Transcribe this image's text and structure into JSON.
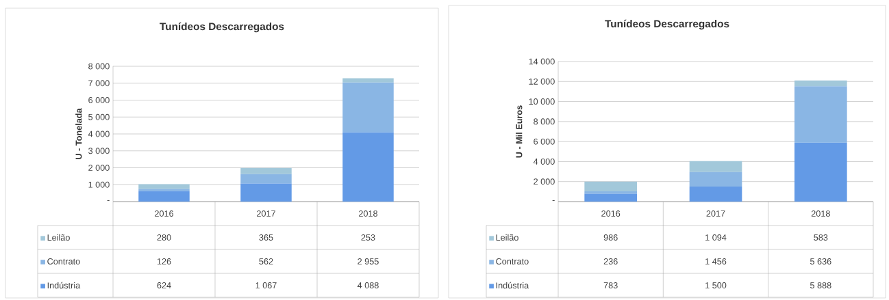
{
  "chart_data": [
    {
      "type": "bar",
      "stacked": true,
      "title": "Tunídeos Descarregados",
      "ylabel": "U - Tonelada",
      "categories": [
        "2016",
        "2017",
        "2018"
      ],
      "ylim": [
        0,
        8000
      ],
      "yticks": [
        {
          "value": 0,
          "label": "-"
        },
        {
          "value": 1000,
          "label": "1 000"
        },
        {
          "value": 2000,
          "label": "2 000"
        },
        {
          "value": 3000,
          "label": "3 000"
        },
        {
          "value": 4000,
          "label": "4 000"
        },
        {
          "value": 5000,
          "label": "5 000"
        },
        {
          "value": 6000,
          "label": "6 000"
        },
        {
          "value": 7000,
          "label": "7 000"
        },
        {
          "value": 8000,
          "label": "8 000"
        }
      ],
      "grid": "y",
      "legend": "bottom",
      "series": [
        {
          "name": "Indústria",
          "color": "#639ae6",
          "values": [
            624,
            1067,
            4088
          ],
          "value_labels": [
            "624",
            "1 067",
            "4 088"
          ]
        },
        {
          "name": "Contrato",
          "color": "#8ab6e4",
          "values": [
            126,
            562,
            2955
          ],
          "value_labels": [
            "126",
            "562",
            "2 955"
          ]
        },
        {
          "name": "Leilão",
          "color": "#a2c8da",
          "values": [
            280,
            365,
            253
          ],
          "value_labels": [
            "280",
            "365",
            "253"
          ]
        }
      ]
    },
    {
      "type": "bar",
      "stacked": true,
      "title": "Tunídeos Descarregados",
      "ylabel": "U - Mil Euros",
      "categories": [
        "2016",
        "2017",
        "2018"
      ],
      "ylim": [
        0,
        14000
      ],
      "yticks": [
        {
          "value": 0,
          "label": "-"
        },
        {
          "value": 2000,
          "label": "2 000"
        },
        {
          "value": 4000,
          "label": "4 000"
        },
        {
          "value": 6000,
          "label": "6 000"
        },
        {
          "value": 8000,
          "label": "8 000"
        },
        {
          "value": 10000,
          "label": "10 000"
        },
        {
          "value": 12000,
          "label": "12 000"
        },
        {
          "value": 14000,
          "label": "14 000"
        }
      ],
      "grid": "y",
      "legend": "bottom",
      "series": [
        {
          "name": "Indústria",
          "color": "#639ae6",
          "values": [
            783,
            1500,
            5888
          ],
          "value_labels": [
            "783",
            "1 500",
            "5 888"
          ]
        },
        {
          "name": "Contrato",
          "color": "#8ab6e4",
          "values": [
            236,
            1456,
            5636
          ],
          "value_labels": [
            "236",
            "1 456",
            "5 636"
          ]
        },
        {
          "name": "Leilão",
          "color": "#a2c8da",
          "values": [
            986,
            1094,
            583
          ],
          "value_labels": [
            "986",
            "1 094",
            "583"
          ]
        }
      ]
    }
  ]
}
